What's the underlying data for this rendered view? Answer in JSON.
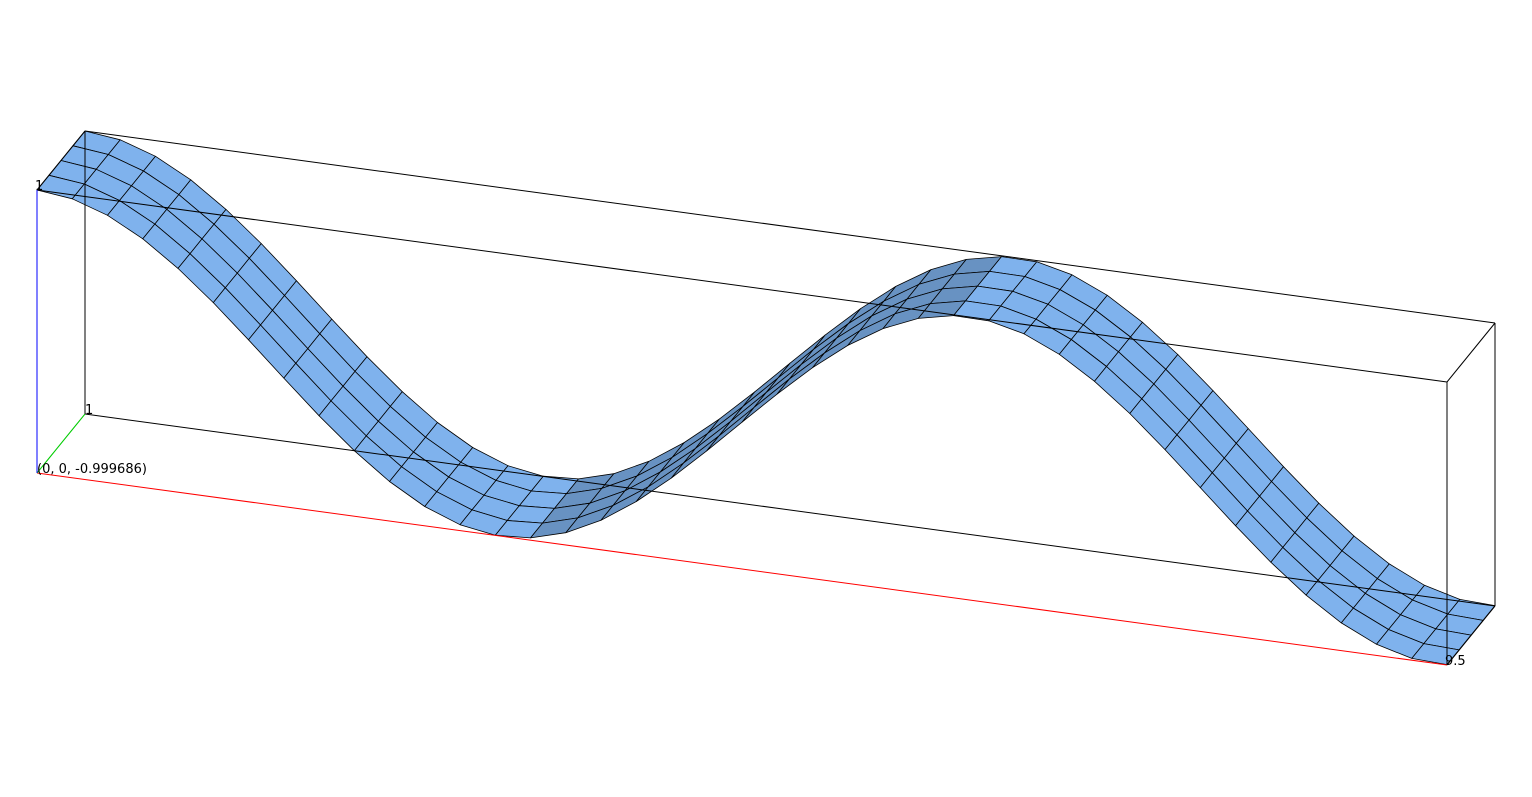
{
  "chart_data": {
    "type": "surface",
    "function": "z = cos(x)",
    "origin_label": "(0, 0, -0.999686)",
    "axis_tick_labels": {
      "x_end": "9.5",
      "y_end": "1",
      "z_end": "1"
    },
    "x_range": [
      0,
      9.5
    ],
    "y_range": [
      0,
      1
    ],
    "z_range": [
      -0.999686,
      1
    ],
    "grid": {
      "x_segments": 40,
      "y_segments": 4
    },
    "bounding_box": true,
    "colors": {
      "surface": "#7fb2ed",
      "mesh": "#000000",
      "x_axis": "#ff0000",
      "y_axis": "#00cc00",
      "z_axis": "#0000ff",
      "box": "#000000"
    }
  }
}
